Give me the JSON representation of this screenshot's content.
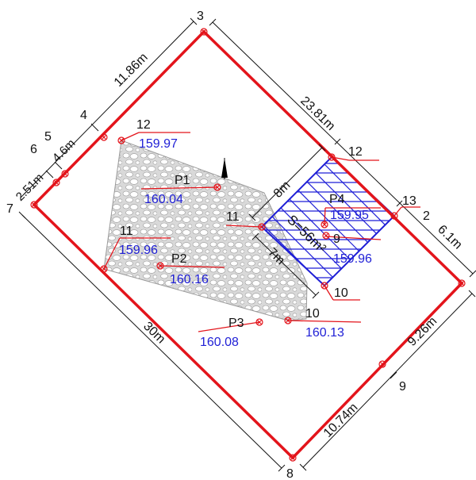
{
  "parcel": {
    "corner_labels": [
      "3",
      "7",
      "8",
      "2"
    ],
    "edge_point_labels": [
      "4",
      "5",
      "6",
      "9",
      "12",
      "13"
    ],
    "dimensions": {
      "top_left_segment": "11.86m",
      "top_right_segment": "23.81m",
      "right_short_segment": "6.1m",
      "right_lower_segment": "9.26m",
      "bottom_right_segment": "10.74m",
      "left_long_side": "30m",
      "left_small_a": "4.6m",
      "left_small_b": "2.51m"
    }
  },
  "points": [
    {
      "id": "12",
      "elevation": "159.97"
    },
    {
      "id": "P1",
      "elevation": "160.04"
    },
    {
      "id": "11",
      "elevation": "159.96"
    },
    {
      "id": "P2",
      "elevation": "160.16"
    },
    {
      "id": "P3",
      "elevation": "160.08"
    },
    {
      "id": "10",
      "elevation": "160.13"
    },
    {
      "id": "P4",
      "elevation": "159.95"
    },
    {
      "id": "9",
      "elevation": "159.96"
    }
  ],
  "building": {
    "area_label": "S=56m²",
    "width_label": "8m",
    "depth_label": "7m",
    "corner_labels": [
      "12",
      "13",
      "11",
      "10"
    ]
  },
  "colors": {
    "boundary": "#e3141b",
    "building": "#1f1fd6",
    "paving": "#bdbdbd",
    "elevation_text": "#1f1fd6",
    "leader": "#e3141b"
  }
}
